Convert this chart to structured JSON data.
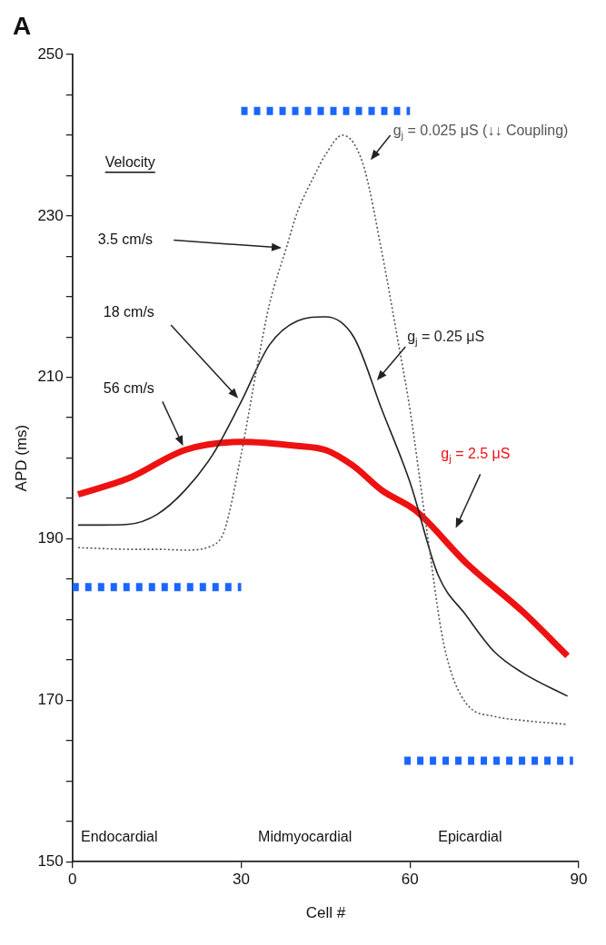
{
  "chart_data": {
    "type": "line",
    "title": "A",
    "xlabel": "Cell #",
    "ylabel": "APD (ms)",
    "xlim": [
      0,
      90
    ],
    "xticks": [
      0,
      30,
      60,
      90
    ],
    "ylim": [
      150,
      250
    ],
    "yticks": [
      150,
      {
        "value": 155,
        "label": null
      },
      {
        "value": 160,
        "label": null
      },
      {
        "value": 165,
        "label": null
      },
      170,
      {
        "value": 175,
        "label": null
      },
      {
        "value": 180,
        "label": null
      },
      {
        "value": 185,
        "label": null
      },
      190,
      {
        "value": 195,
        "label": null
      },
      {
        "value": 200,
        "label": null
      },
      {
        "value": 205,
        "label": null
      },
      210,
      {
        "value": 215,
        "label": null
      },
      {
        "value": 220,
        "label": null
      },
      {
        "value": 225,
        "label": null
      },
      230,
      {
        "value": 235,
        "label": null
      },
      {
        "value": 240,
        "label": null
      },
      {
        "value": 245,
        "label": null
      },
      250
    ],
    "grid": false,
    "legend": false,
    "marker": "none",
    "series": [
      {
        "name": "g$_{j}$ = 0.025 μS (↓↓ Coupling)",
        "color": "#555555",
        "line_style": "dotted",
        "x": [
          1,
          5,
          10,
          15,
          20,
          25,
          27,
          30,
          33,
          35,
          38,
          40,
          43,
          45,
          48,
          50,
          52,
          55,
          58,
          60,
          63,
          66,
          70,
          75,
          80,
          88
        ],
        "values": [
          188.9,
          188.8,
          188.7,
          188.7,
          188.6,
          189.2,
          191,
          200.5,
          212,
          219,
          226,
          230.5,
          235,
          237.6,
          240,
          239,
          235.6,
          225.5,
          214,
          206,
          191,
          177,
          169.6,
          168,
          167.5,
          167
        ]
      },
      {
        "name": "g$_{j}$ = 0.25 μS",
        "color": "#222222",
        "line_style": "solid",
        "x": [
          1,
          5,
          10,
          15,
          20,
          25,
          30,
          35,
          40,
          45,
          50,
          55,
          60,
          65,
          70,
          75,
          80,
          88
        ],
        "values": [
          191.7,
          191.7,
          191.8,
          193,
          196,
          200.5,
          207,
          214,
          217,
          217.5,
          215,
          206,
          197,
          185.5,
          180.5,
          176,
          173.4,
          170.5
        ]
      },
      {
        "name": "g$_{j}$ = 2.5 μS",
        "color": "#ee1111",
        "line_style": "solid",
        "x": [
          1,
          10,
          20,
          30,
          40,
          45,
          50,
          55,
          61,
          70,
          80,
          88
        ],
        "values": [
          195.5,
          197.5,
          201,
          202,
          201.5,
          201,
          199,
          196,
          193.5,
          187,
          181,
          175.5
        ]
      },
      {
        "color": "#1a66ff",
        "line_style": "dotted",
        "x": [
          0,
          30
        ],
        "values": [
          184,
          184
        ]
      },
      {
        "color": "#1a66ff",
        "line_style": "dotted",
        "x": [
          30,
          60
        ],
        "values": [
          243,
          243
        ]
      },
      {
        "color": "#1a66ff",
        "line_style": "dotted",
        "x": [
          59,
          89
        ],
        "values": [
          162.5,
          162.5
        ]
      }
    ],
    "annotations": [
      "Velocity",
      "3.5 cm/s",
      "18 cm/s",
      "56 cm/s",
      "Endocardial",
      "Midmyocardial",
      "Epicardial"
    ]
  }
}
